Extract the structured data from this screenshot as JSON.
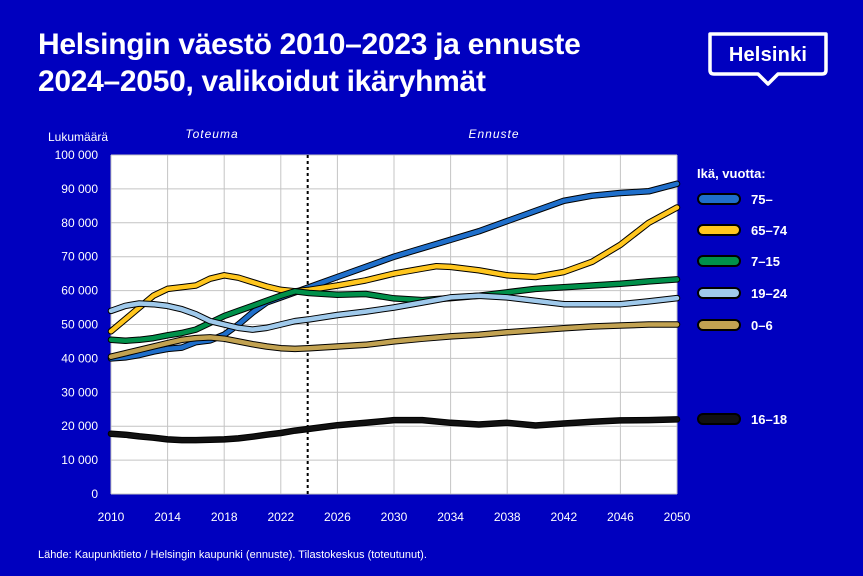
{
  "header": {
    "title_line1": "Helsingin väestö 2010–2023 ja ennuste",
    "title_line2": "2024–2050, valikoidut ikäryhmät",
    "logo_text": "Helsinki"
  },
  "footer": {
    "source": "Lähde: Kaupunkitieto / Helsingin kaupunki (ennuste). Tilastokeskus (toteutunut)."
  },
  "chart_data": {
    "type": "line",
    "title": "Helsingin väestö 2010–2023 ja ennuste 2024–2050, valikoidut ikäryhmät",
    "ylabel": "Lukumäärä",
    "xlabel": "",
    "xlim": [
      2010,
      2050
    ],
    "ylim": [
      0,
      100000
    ],
    "x_ticks": [
      "2010",
      "2014",
      "2018",
      "2022",
      "2026",
      "2030",
      "2034",
      "2038",
      "2042",
      "2046",
      "2050"
    ],
    "y_ticks": [
      "0",
      "10 000",
      "20 000",
      "30 000",
      "40 000",
      "50 000",
      "60 000",
      "70 000",
      "80 000",
      "90 000",
      "100 000"
    ],
    "y_tick_values": [
      0,
      10000,
      20000,
      30000,
      40000,
      50000,
      60000,
      70000,
      80000,
      90000,
      100000
    ],
    "x_tick_values": [
      2010,
      2014,
      2018,
      2022,
      2026,
      2030,
      2034,
      2038,
      2042,
      2046,
      2050
    ],
    "divider_year": 2023.9,
    "period_labels": {
      "actual": "Toteuma",
      "forecast": "Ennuste"
    },
    "legend_title": "Ikä, vuotta:",
    "series": [
      {
        "name": "75–",
        "color": "#1f6fcb",
        "x": [
          2010,
          2011,
          2012,
          2013,
          2014,
          2015,
          2016,
          2017,
          2018,
          2019,
          2020,
          2021,
          2022,
          2023,
          2024,
          2026,
          2028,
          2030,
          2032,
          2034,
          2036,
          2038,
          2040,
          2042,
          2044,
          2046,
          2048,
          2050
        ],
        "values": [
          40000,
          40300,
          41000,
          42000,
          42800,
          43200,
          44800,
          45300,
          47000,
          50000,
          53500,
          56500,
          58000,
          59500,
          61000,
          64000,
          67000,
          70000,
          72500,
          75000,
          77500,
          80500,
          83500,
          86500,
          88000,
          88800,
          89300,
          91500
        ]
      },
      {
        "name": "65–74",
        "color": "#ffc61e",
        "x": [
          2010,
          2011,
          2012,
          2013,
          2014,
          2015,
          2016,
          2017,
          2018,
          2019,
          2020,
          2021,
          2022,
          2023,
          2024,
          2026,
          2028,
          2030,
          2032,
          2033,
          2034,
          2036,
          2038,
          2040,
          2042,
          2044,
          2046,
          2048,
          2050
        ],
        "values": [
          48000,
          51500,
          55000,
          58500,
          60500,
          61000,
          61500,
          63500,
          64500,
          63800,
          62500,
          61200,
          60200,
          59800,
          60200,
          61500,
          63000,
          65000,
          66500,
          67200,
          67000,
          66000,
          64500,
          64000,
          65500,
          68500,
          73500,
          80000,
          84500
        ]
      },
      {
        "name": "7–15",
        "color": "#00904a",
        "x": [
          2010,
          2011,
          2012,
          2013,
          2014,
          2015,
          2016,
          2017,
          2018,
          2019,
          2020,
          2021,
          2022,
          2023,
          2024,
          2026,
          2028,
          2030,
          2032,
          2034,
          2036,
          2038,
          2040,
          2042,
          2044,
          2046,
          2048,
          2050
        ],
        "values": [
          45500,
          45200,
          45500,
          46000,
          46800,
          47500,
          48500,
          50500,
          52500,
          54000,
          55500,
          57000,
          58500,
          59800,
          59300,
          58800,
          59000,
          57700,
          57200,
          57800,
          58500,
          59500,
          60500,
          61000,
          61500,
          62000,
          62700,
          63300
        ]
      },
      {
        "name": "19–24",
        "color": "#9fc9eb",
        "x": [
          2010,
          2011,
          2012,
          2013,
          2014,
          2015,
          2016,
          2017,
          2018,
          2019,
          2020,
          2021,
          2022,
          2023,
          2024,
          2026,
          2028,
          2030,
          2032,
          2034,
          2036,
          2038,
          2040,
          2042,
          2044,
          2046,
          2048,
          2050
        ],
        "values": [
          54000,
          55500,
          56200,
          56000,
          55500,
          54500,
          53000,
          51000,
          50000,
          49000,
          48500,
          49000,
          50000,
          51000,
          51500,
          52800,
          53800,
          55000,
          56500,
          58000,
          58500,
          58000,
          57000,
          56000,
          56000,
          56000,
          56800,
          57800
        ]
      },
      {
        "name": "0–6",
        "color": "#c2a251",
        "x": [
          2010,
          2011,
          2012,
          2013,
          2014,
          2015,
          2016,
          2017,
          2018,
          2019,
          2020,
          2021,
          2022,
          2023,
          2024,
          2026,
          2028,
          2030,
          2032,
          2034,
          2036,
          2038,
          2040,
          2042,
          2044,
          2046,
          2048,
          2050
        ],
        "values": [
          40500,
          41500,
          42500,
          43500,
          44500,
          45500,
          46000,
          46200,
          45800,
          45000,
          44200,
          43500,
          43000,
          42800,
          43000,
          43500,
          44000,
          45000,
          45800,
          46500,
          47000,
          47700,
          48300,
          48900,
          49400,
          49700,
          50000,
          50000
        ]
      },
      {
        "name": "16–18",
        "color": "#111111",
        "x": [
          2010,
          2011,
          2012,
          2013,
          2014,
          2015,
          2016,
          2017,
          2018,
          2019,
          2020,
          2021,
          2022,
          2023,
          2024,
          2026,
          2028,
          2030,
          2032,
          2034,
          2036,
          2038,
          2040,
          2042,
          2044,
          2046,
          2048,
          2050
        ],
        "values": [
          17800,
          17500,
          17000,
          16600,
          16100,
          15900,
          15900,
          16000,
          16100,
          16400,
          16900,
          17500,
          18000,
          18700,
          19200,
          20300,
          21000,
          21800,
          21800,
          21000,
          20500,
          21000,
          20200,
          20800,
          21300,
          21700,
          21800,
          22000
        ]
      }
    ]
  }
}
